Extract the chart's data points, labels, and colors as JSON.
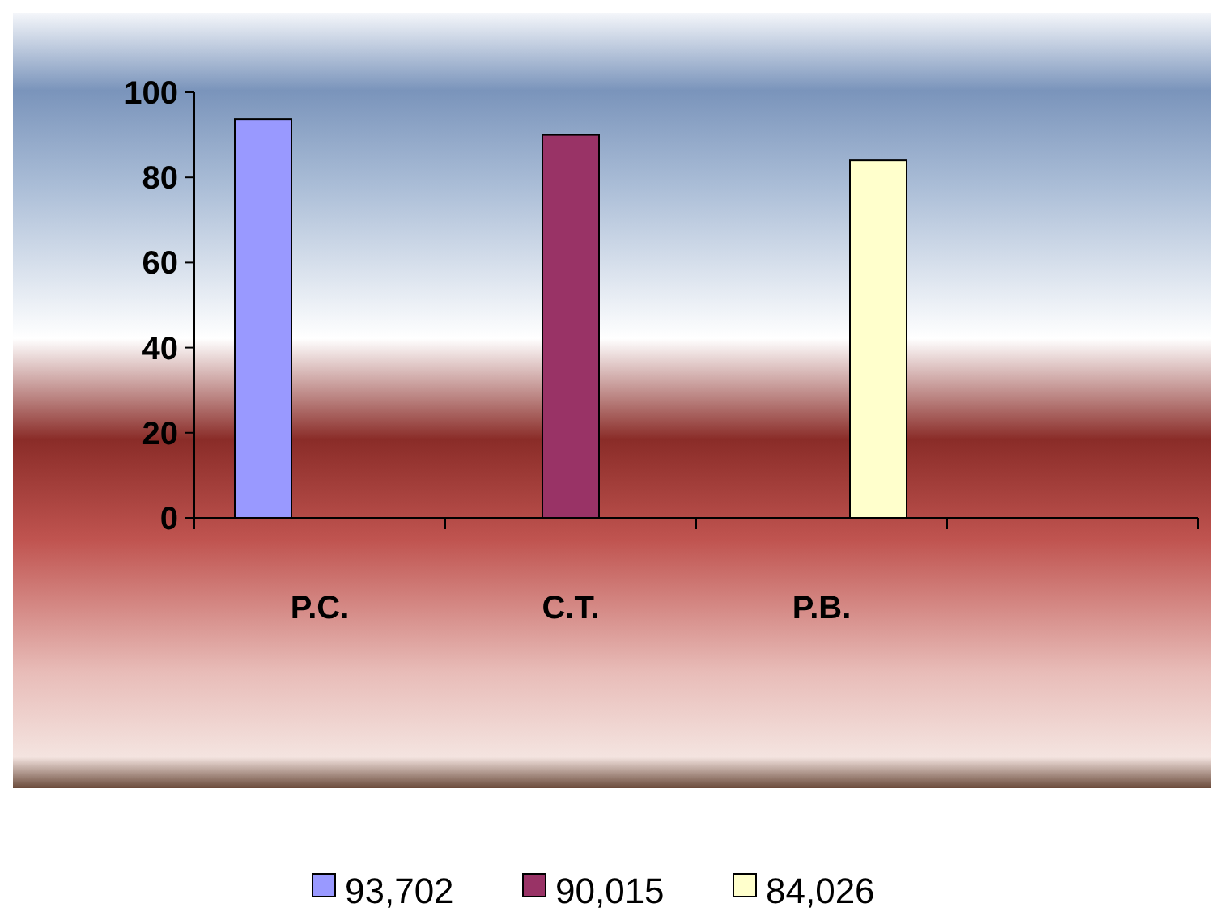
{
  "chart_data": {
    "type": "bar",
    "categories": [
      "P.C.",
      "C.T.",
      "P.B.",
      null
    ],
    "series": [
      {
        "name": "93,702",
        "color": "#9999ff",
        "values": [
          93.7,
          null,
          null,
          null
        ]
      },
      {
        "name": "90,015",
        "color": "#993366",
        "values": [
          null,
          90,
          null,
          null
        ]
      },
      {
        "name": "84,026",
        "color": "#ffffcc",
        "values": [
          null,
          null,
          84,
          null
        ]
      }
    ],
    "ylim": [
      0,
      100
    ],
    "yticks": [
      0,
      20,
      40,
      60,
      80,
      100
    ],
    "grid": false,
    "legend": "bottom"
  }
}
